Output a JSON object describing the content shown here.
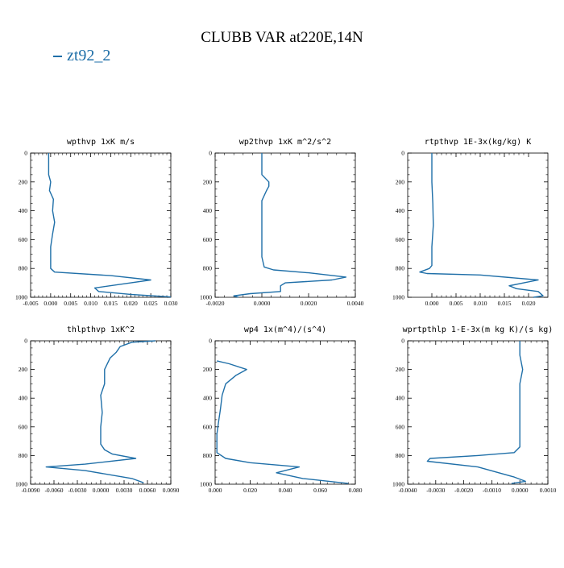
{
  "title": "CLUBB VAR at220E,14N",
  "legend": {
    "label": "zt92_2",
    "color": "#1f6fa8"
  },
  "colors": {
    "line": "#1f6fa8",
    "axis": "#000000"
  },
  "chart_data": [
    {
      "type": "line",
      "title": "wpthvp  1xK m/s",
      "xlim": [
        -0.005,
        0.03
      ],
      "ylim": [
        1000,
        0
      ],
      "y_inverted": true,
      "xticks": [
        "-0.005",
        "0.000",
        "0.005",
        "0.010",
        "0.015",
        "0.020",
        "0.025",
        "0.030"
      ],
      "yticks": [
        "0",
        "200",
        "400",
        "600",
        "800",
        "1000"
      ],
      "series": [
        {
          "points": [
            [
              -0.0005,
              0
            ],
            [
              -0.0005,
              150
            ],
            [
              0.0,
              200
            ],
            [
              -0.0003,
              260
            ],
            [
              0.0007,
              320
            ],
            [
              0.0005,
              400
            ],
            [
              0.001,
              480
            ],
            [
              0.0005,
              560
            ],
            [
              0.0,
              650
            ],
            [
              0.0,
              700
            ],
            [
              0.0,
              800
            ],
            [
              0.001,
              825
            ],
            [
              0.015,
              850
            ],
            [
              0.025,
              880
            ],
            [
              0.02,
              900
            ],
            [
              0.011,
              935
            ],
            [
              0.012,
              960
            ],
            [
              0.02,
              980
            ],
            [
              0.03,
              998
            ]
          ]
        }
      ]
    },
    {
      "type": "line",
      "title": "wp2thvp  1xK m^2/s^2",
      "xlim": [
        -0.002,
        0.004
      ],
      "ylim": [
        1000,
        0
      ],
      "y_inverted": true,
      "xticks": [
        "-0.0020",
        "0.0000",
        "0.0020",
        "0.0040"
      ],
      "yticks": [
        "0",
        "200",
        "400",
        "600",
        "800",
        "1000"
      ],
      "series": [
        {
          "points": [
            [
              0.0,
              0
            ],
            [
              0.0,
              150
            ],
            [
              0.0003,
              200
            ],
            [
              0.0003,
              230
            ],
            [
              0.0002,
              260
            ],
            [
              0.0,
              330
            ],
            [
              0.0,
              500
            ],
            [
              0.0,
              720
            ],
            [
              0.0001,
              790
            ],
            [
              0.0005,
              810
            ],
            [
              0.002,
              830
            ],
            [
              0.0036,
              860
            ],
            [
              0.003,
              880
            ],
            [
              0.001,
              900
            ],
            [
              0.0008,
              920
            ],
            [
              0.0008,
              960
            ],
            [
              -0.0005,
              975
            ],
            [
              -0.0012,
              990
            ],
            [
              -0.001,
              1000
            ]
          ]
        }
      ]
    },
    {
      "type": "line",
      "title": "rtpthvp  1E-3x(kg/kg) K",
      "xlim": [
        -0.005,
        0.024
      ],
      "ylim": [
        1000,
        0
      ],
      "y_inverted": true,
      "xticks": [
        "0.000",
        "0.005",
        "0.010",
        "0.015",
        "0.020"
      ],
      "yticks": [
        "0",
        "200",
        "400",
        "600",
        "800",
        "1000"
      ],
      "series": [
        {
          "points": [
            [
              0.0,
              0
            ],
            [
              0.0,
              200
            ],
            [
              0.0002,
              350
            ],
            [
              0.0003,
              500
            ],
            [
              0.0,
              650
            ],
            [
              0.0,
              780
            ],
            [
              -0.0005,
              800
            ],
            [
              -0.0025,
              825
            ],
            [
              -0.001,
              835
            ],
            [
              0.01,
              845
            ],
            [
              0.022,
              880
            ],
            [
              0.019,
              900
            ],
            [
              0.016,
              920
            ],
            [
              0.0175,
              940
            ],
            [
              0.022,
              960
            ],
            [
              0.023,
              990
            ],
            [
              0.021,
              1000
            ]
          ]
        }
      ]
    },
    {
      "type": "line",
      "title": "thlpthvp  1xK^2",
      "xlim": [
        -0.009,
        0.009
      ],
      "ylim": [
        1000,
        0
      ],
      "y_inverted": true,
      "xticks": [
        "-0.0090",
        "-0.0060",
        "-0.0030",
        "0.0000",
        "0.0030",
        "0.0060",
        "0.0090"
      ],
      "yticks": [
        "0",
        "200",
        "400",
        "600",
        "800",
        "1000"
      ],
      "series": [
        {
          "points": [
            [
              0.007,
              0
            ],
            [
              0.004,
              10
            ],
            [
              0.0025,
              40
            ],
            [
              0.002,
              80
            ],
            [
              0.0012,
              120
            ],
            [
              0.0005,
              200
            ],
            [
              0.0005,
              300
            ],
            [
              0.0,
              380
            ],
            [
              0.0002,
              500
            ],
            [
              0.0,
              600
            ],
            [
              0.0,
              720
            ],
            [
              0.0005,
              760
            ],
            [
              0.0015,
              790
            ],
            [
              0.0045,
              820
            ],
            [
              -0.002,
              860
            ],
            [
              -0.007,
              880
            ],
            [
              -0.002,
              905
            ],
            [
              0.004,
              960
            ],
            [
              0.0055,
              990
            ]
          ]
        }
      ]
    },
    {
      "type": "line",
      "title": "wp4  1x(m^4)/(s^4)",
      "xlim": [
        0.0,
        0.08
      ],
      "ylim": [
        1000,
        0
      ],
      "y_inverted": true,
      "xticks": [
        "0.000",
        "0.020",
        "0.040",
        "0.060",
        "0.080"
      ],
      "yticks": [
        "0",
        "200",
        "400",
        "600",
        "800",
        "1000"
      ],
      "series": [
        {
          "points": [
            [
              0.001,
              140
            ],
            [
              0.008,
              160
            ],
            [
              0.018,
              200
            ],
            [
              0.012,
              240
            ],
            [
              0.006,
              300
            ],
            [
              0.004,
              380
            ],
            [
              0.003,
              480
            ],
            [
              0.002,
              560
            ],
            [
              0.001,
              650
            ],
            [
              0.001,
              780
            ],
            [
              0.006,
              820
            ],
            [
              0.02,
              850
            ],
            [
              0.048,
              880
            ],
            [
              0.035,
              920
            ],
            [
              0.05,
              960
            ],
            [
              0.076,
              995
            ]
          ]
        }
      ]
    },
    {
      "type": "line",
      "title": "wprtpthlp  1-E-3x(m kg K)/(s kg)",
      "xlim": [
        -0.004,
        0.001
      ],
      "ylim": [
        1000,
        0
      ],
      "y_inverted": true,
      "xticks": [
        "-0.0040",
        "-0.0030",
        "-0.0020",
        "-0.0010",
        "0.0000",
        "0.0010"
      ],
      "yticks": [
        "0",
        "200",
        "400",
        "600",
        "800",
        "1000"
      ],
      "series": [
        {
          "points": [
            [
              0.0,
              0
            ],
            [
              0.0,
              100
            ],
            [
              0.0001,
              200
            ],
            [
              0.0,
              300
            ],
            [
              0.0,
              400
            ],
            [
              0.0,
              600
            ],
            [
              0.0,
              740
            ],
            [
              -0.0002,
              780
            ],
            [
              -0.0015,
              800
            ],
            [
              -0.0032,
              820
            ],
            [
              -0.0033,
              840
            ],
            [
              -0.0015,
              880
            ],
            [
              -0.0002,
              950
            ],
            [
              0.0002,
              980
            ],
            [
              -0.0003,
              995
            ]
          ]
        }
      ]
    }
  ]
}
